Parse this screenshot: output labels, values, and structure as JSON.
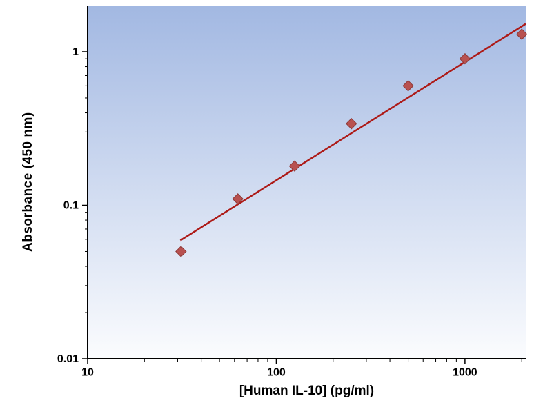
{
  "chart_data": {
    "type": "scatter",
    "title": "",
    "xlabel": "[Human IL-10] (pg/ml)",
    "ylabel": "Absorbance (450 nm)",
    "x_scale": "log",
    "y_scale": "log",
    "xlim": [
      10,
      2100
    ],
    "ylim": [
      0.01,
      2.0
    ],
    "x_ticks": [
      "10",
      "100",
      "1000"
    ],
    "y_ticks": [
      "1",
      "0.1",
      "0.01"
    ],
    "grid": false,
    "legend": "none",
    "series": [
      {
        "marker": "diamond",
        "x": [
          31.25,
          62.5,
          125,
          250,
          500,
          1000,
          2000
        ],
        "y": [
          0.05,
          0.11,
          0.18,
          0.34,
          0.6,
          0.9,
          1.3
        ]
      }
    ],
    "trendline": {
      "x": [
        31,
        2100
      ],
      "y": [
        0.059,
        1.52
      ]
    },
    "colors": {
      "marker": "#b85150",
      "marker_edge": "#8e3836",
      "trend": "#ad1a17",
      "axis": "#000000",
      "plot_bg_top": "#a2b8e2",
      "plot_bg_bottom": "#fbfcfe"
    }
  }
}
